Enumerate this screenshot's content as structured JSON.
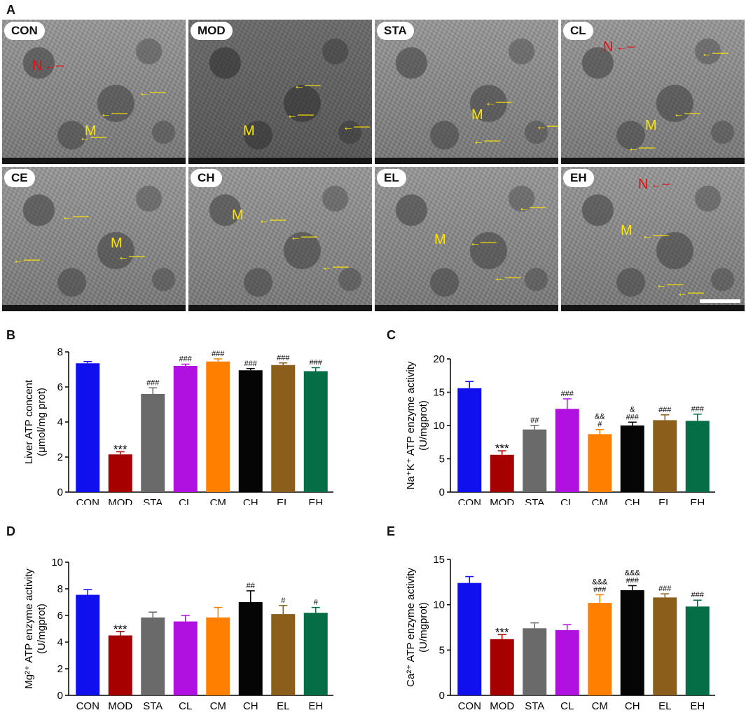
{
  "panel_letters": {
    "A": "A",
    "B": "B",
    "C": "C",
    "D": "D",
    "E": "E"
  },
  "micrographs": [
    {
      "label": "CON",
      "n_label": "N",
      "m_label": "M"
    },
    {
      "label": "MOD",
      "m_label": "M"
    },
    {
      "label": "STA",
      "m_label": "M"
    },
    {
      "label": "CL",
      "n_label": "N",
      "m_label": "M"
    },
    {
      "label": "CE",
      "m_label": "M"
    },
    {
      "label": "CH",
      "m_label": "M"
    },
    {
      "label": "EL",
      "m_label": "M"
    },
    {
      "label": "EH",
      "n_label": "N",
      "m_label": "M"
    }
  ],
  "colors": {
    "arrow_yellow": "#ffe600",
    "arrow_red": "#e01010"
  },
  "chart_data": [
    {
      "type": "bar",
      "categories": [
        "CON",
        "MOD",
        "STA",
        "CL",
        "CM",
        "CH",
        "EL",
        "EH"
      ],
      "values": [
        7.35,
        2.15,
        5.6,
        7.2,
        7.45,
        6.95,
        7.25,
        6.9
      ],
      "errors": [
        0.1,
        0.15,
        0.35,
        0.1,
        0.15,
        0.1,
        0.12,
        0.2
      ],
      "annotations": [
        "",
        "***",
        "###",
        "###",
        "###",
        "###",
        "###",
        "###"
      ],
      "ylabel": "Liver ATP concent (μmol/mg prot)",
      "ylim": [
        0,
        8
      ],
      "yticks": [
        0,
        2,
        4,
        6,
        8
      ]
    },
    {
      "type": "bar",
      "categories": [
        "CON",
        "MOD",
        "STA",
        "CL",
        "CM",
        "CH",
        "EL",
        "EH"
      ],
      "values": [
        15.6,
        5.6,
        9.4,
        12.5,
        8.7,
        10.0,
        10.8,
        10.7
      ],
      "errors": [
        1.0,
        0.6,
        0.6,
        1.5,
        0.7,
        0.5,
        0.8,
        1.0
      ],
      "annotations": [
        "",
        "***",
        "##",
        "###",
        "&& #",
        "& ###",
        "###",
        "###"
      ],
      "ylabel": "Na⁺K⁺ ATP enzyme activity (U/mgprot)",
      "ylim": [
        0,
        20
      ],
      "yticks": [
        0,
        5,
        10,
        15,
        20
      ]
    },
    {
      "type": "bar",
      "categories": [
        "CON",
        "MOD",
        "STA",
        "CL",
        "CM",
        "CH",
        "EL",
        "EH"
      ],
      "values": [
        7.55,
        4.5,
        5.85,
        5.55,
        5.85,
        7.0,
        6.1,
        6.2
      ],
      "errors": [
        0.4,
        0.3,
        0.4,
        0.45,
        0.75,
        0.85,
        0.65,
        0.4
      ],
      "annotations": [
        "",
        "***",
        "",
        "",
        "",
        "##",
        "#",
        "#"
      ],
      "ylabel": "Mg²⁺ ATP enzyme activity (U/mgprot)",
      "ylim": [
        0,
        10
      ],
      "yticks": [
        0,
        2,
        4,
        6,
        8,
        10
      ]
    },
    {
      "type": "bar",
      "categories": [
        "CON",
        "MOD",
        "STA",
        "CL",
        "CM",
        "CH",
        "EL",
        "EH"
      ],
      "values": [
        12.4,
        6.2,
        7.4,
        7.2,
        10.2,
        11.6,
        10.8,
        9.8
      ],
      "errors": [
        0.7,
        0.5,
        0.6,
        0.6,
        0.9,
        0.5,
        0.4,
        0.7
      ],
      "annotations": [
        "",
        "***",
        "",
        "",
        "&&& ###",
        "&&& ###",
        "###",
        "###"
      ],
      "ylabel": "Ca²⁺ ATP enzyme activity (U/mgprot)",
      "ylim": [
        0,
        15
      ],
      "yticks": [
        0,
        5,
        10,
        15
      ]
    }
  ],
  "bar_colors": [
    "#1010ee",
    "#a60000",
    "#6a6a6a",
    "#b010e0",
    "#ff8000",
    "#050505",
    "#8c5e1c",
    "#066e46"
  ]
}
